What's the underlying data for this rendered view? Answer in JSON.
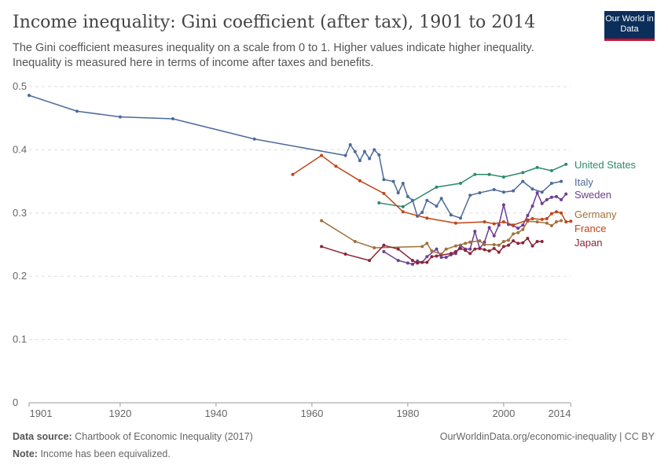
{
  "header": {
    "title": "Income inequality: Gini coefficient (after tax), 1901 to 2014",
    "subtitle": "The Gini coefficient measures inequality on a scale from 0 to 1. Higher values indicate higher inequality. Inequality is measured here in terms of income after taxes and benefits.",
    "logo": "Our World in Data"
  },
  "footer": {
    "source_label": "Data source:",
    "source": "Chartbook of Economic Inequality (2017)",
    "url": "OurWorldinData.org/economic-inequality | CC BY",
    "note_label": "Note:",
    "note": "Income has been equivalized."
  },
  "chart_data": {
    "type": "line",
    "ylim": [
      0,
      0.5
    ],
    "xlim": [
      1901,
      2014
    ],
    "grid": "horizontal dashed",
    "legend": "right, inline labels",
    "yticks": [
      "0",
      "0.1",
      "0.2",
      "0.3",
      "0.4",
      "0.5"
    ],
    "xticks": [
      "1901",
      "1920",
      "1940",
      "1960",
      "1980",
      "2000",
      "2014"
    ],
    "series": [
      {
        "name": "United States",
        "color": "#2e8a69",
        "points": [
          [
            1974,
            0.316
          ],
          [
            1979,
            0.31
          ],
          [
            1986,
            0.341
          ],
          [
            1991,
            0.347
          ],
          [
            1994,
            0.361
          ],
          [
            1997,
            0.361
          ],
          [
            2000,
            0.357
          ],
          [
            2004,
            0.364
          ],
          [
            2007,
            0.372
          ],
          [
            2010,
            0.367
          ],
          [
            2013,
            0.377
          ]
        ]
      },
      {
        "name": "Italy",
        "color": "#4c6a9c",
        "points": [
          [
            1901,
            0.486
          ],
          [
            1911,
            0.461
          ],
          [
            1920,
            0.452
          ],
          [
            1931,
            0.449
          ],
          [
            1948,
            0.417
          ],
          [
            1967,
            0.391
          ],
          [
            1968,
            0.408
          ],
          [
            1969,
            0.397
          ],
          [
            1970,
            0.383
          ],
          [
            1971,
            0.397
          ],
          [
            1972,
            0.386
          ],
          [
            1973,
            0.4
          ],
          [
            1974,
            0.392
          ],
          [
            1975,
            0.353
          ],
          [
            1977,
            0.35
          ],
          [
            1978,
            0.332
          ],
          [
            1979,
            0.347
          ],
          [
            1980,
            0.326
          ],
          [
            1981,
            0.32
          ],
          [
            1982,
            0.295
          ],
          [
            1983,
            0.301
          ],
          [
            1984,
            0.32
          ],
          [
            1986,
            0.311
          ],
          [
            1987,
            0.323
          ],
          [
            1989,
            0.297
          ],
          [
            1991,
            0.292
          ],
          [
            1993,
            0.328
          ],
          [
            1995,
            0.332
          ],
          [
            1998,
            0.337
          ],
          [
            2000,
            0.333
          ],
          [
            2002,
            0.335
          ],
          [
            2004,
            0.35
          ],
          [
            2006,
            0.338
          ],
          [
            2008,
            0.333
          ],
          [
            2010,
            0.347
          ],
          [
            2012,
            0.35
          ]
        ]
      },
      {
        "name": "Sweden",
        "color": "#6d3e91",
        "points": [
          [
            1975,
            0.239
          ],
          [
            1978,
            0.225
          ],
          [
            1980,
            0.221
          ],
          [
            1981,
            0.219
          ],
          [
            1982,
            0.224
          ],
          [
            1983,
            0.222
          ],
          [
            1984,
            0.231
          ],
          [
            1986,
            0.243
          ],
          [
            1987,
            0.23
          ],
          [
            1988,
            0.23
          ],
          [
            1989,
            0.234
          ],
          [
            1990,
            0.236
          ],
          [
            1991,
            0.249
          ],
          [
            1992,
            0.243
          ],
          [
            1993,
            0.243
          ],
          [
            1994,
            0.271
          ],
          [
            1995,
            0.244
          ],
          [
            1996,
            0.254
          ],
          [
            1997,
            0.277
          ],
          [
            1998,
            0.264
          ],
          [
            1999,
            0.281
          ],
          [
            2000,
            0.313
          ],
          [
            2001,
            0.282
          ],
          [
            2002,
            0.28
          ],
          [
            2003,
            0.276
          ],
          [
            2004,
            0.281
          ],
          [
            2005,
            0.296
          ],
          [
            2006,
            0.311
          ],
          [
            2007,
            0.332
          ],
          [
            2008,
            0.315
          ],
          [
            2009,
            0.321
          ],
          [
            2010,
            0.325
          ],
          [
            2011,
            0.326
          ],
          [
            2012,
            0.321
          ],
          [
            2013,
            0.33
          ]
        ]
      },
      {
        "name": "Germany",
        "color": "#a2703a",
        "points": [
          [
            1962,
            0.288
          ],
          [
            1969,
            0.255
          ],
          [
            1973,
            0.245
          ],
          [
            1983,
            0.247
          ],
          [
            1984,
            0.252
          ],
          [
            1985,
            0.24
          ],
          [
            1987,
            0.235
          ],
          [
            1988,
            0.243
          ],
          [
            1990,
            0.248
          ],
          [
            1992,
            0.252
          ],
          [
            1993,
            0.254
          ],
          [
            1995,
            0.256
          ],
          [
            1996,
            0.25
          ],
          [
            1998,
            0.25
          ],
          [
            1999,
            0.249
          ],
          [
            2000,
            0.255
          ],
          [
            2001,
            0.257
          ],
          [
            2002,
            0.267
          ],
          [
            2003,
            0.269
          ],
          [
            2004,
            0.274
          ],
          [
            2005,
            0.287
          ],
          [
            2007,
            0.286
          ],
          [
            2009,
            0.284
          ],
          [
            2010,
            0.28
          ],
          [
            2011,
            0.286
          ],
          [
            2012,
            0.288
          ]
        ]
      },
      {
        "name": "France",
        "color": "#c0451a",
        "points": [
          [
            1956,
            0.361
          ],
          [
            1962,
            0.391
          ],
          [
            1965,
            0.374
          ],
          [
            1970,
            0.351
          ],
          [
            1975,
            0.331
          ],
          [
            1979,
            0.302
          ],
          [
            1984,
            0.292
          ],
          [
            1990,
            0.284
          ],
          [
            1996,
            0.286
          ],
          [
            1998,
            0.283
          ],
          [
            2000,
            0.286
          ],
          [
            2002,
            0.281
          ],
          [
            2005,
            0.289
          ],
          [
            2006,
            0.291
          ],
          [
            2008,
            0.29
          ],
          [
            2009,
            0.291
          ],
          [
            2010,
            0.299
          ],
          [
            2011,
            0.302
          ],
          [
            2012,
            0.3
          ],
          [
            2013,
            0.286
          ],
          [
            2014,
            0.287
          ]
        ]
      },
      {
        "name": "Japan",
        "color": "#8c2338",
        "points": [
          [
            1962,
            0.247
          ],
          [
            1967,
            0.235
          ],
          [
            1972,
            0.225
          ],
          [
            1975,
            0.249
          ],
          [
            1978,
            0.243
          ],
          [
            1981,
            0.225
          ],
          [
            1982,
            0.221
          ],
          [
            1983,
            0.222
          ],
          [
            1984,
            0.222
          ],
          [
            1985,
            0.231
          ],
          [
            1986,
            0.232
          ],
          [
            1989,
            0.236
          ],
          [
            1990,
            0.239
          ],
          [
            1991,
            0.244
          ],
          [
            1992,
            0.241
          ],
          [
            1993,
            0.236
          ],
          [
            1994,
            0.243
          ],
          [
            1995,
            0.244
          ],
          [
            1996,
            0.242
          ],
          [
            1997,
            0.24
          ],
          [
            1998,
            0.244
          ],
          [
            1999,
            0.238
          ],
          [
            2000,
            0.247
          ],
          [
            2001,
            0.249
          ],
          [
            2002,
            0.256
          ],
          [
            2003,
            0.252
          ],
          [
            2004,
            0.253
          ],
          [
            2005,
            0.26
          ],
          [
            2006,
            0.248
          ],
          [
            2007,
            0.255
          ],
          [
            2008,
            0.255
          ]
        ]
      }
    ],
    "label_order": [
      "United States",
      "Italy",
      "Sweden",
      "Germany",
      "France",
      "Japan"
    ]
  }
}
